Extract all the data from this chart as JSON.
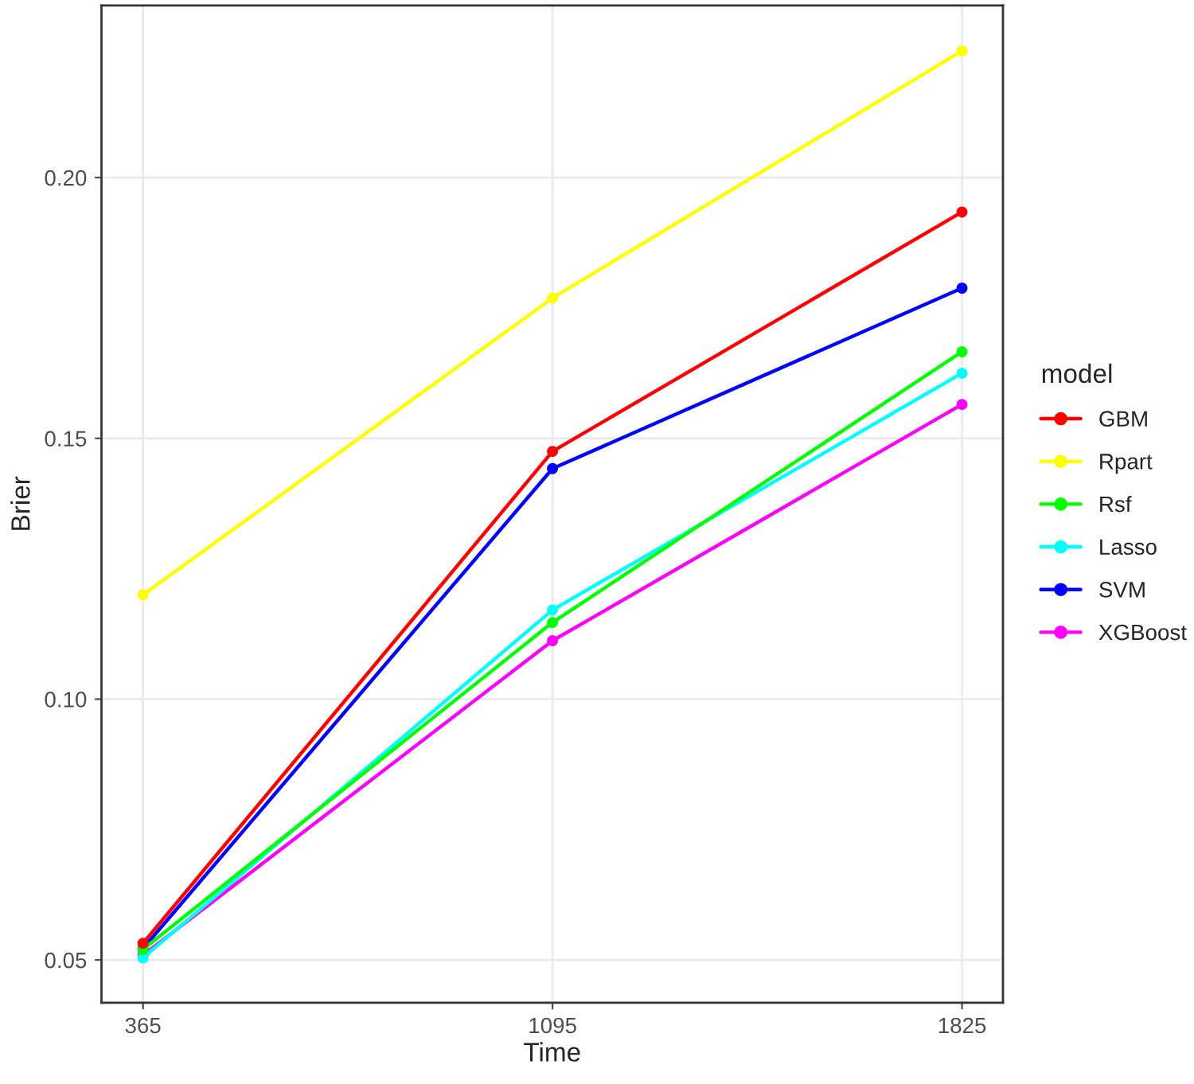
{
  "chart_data": {
    "type": "line",
    "xlabel": "Time",
    "ylabel": "Brier",
    "legend_title": "model",
    "x": [
      365,
      1095,
      1825
    ],
    "series": [
      {
        "name": "GBM",
        "color": "#ff0000",
        "values": [
          0.0532,
          0.1475,
          0.1934
        ]
      },
      {
        "name": "Rpart",
        "color": "#ffff00",
        "values": [
          0.12,
          0.1769,
          0.2243
        ]
      },
      {
        "name": "Rsf",
        "color": "#00ff00",
        "values": [
          0.052,
          0.1147,
          0.1666
        ]
      },
      {
        "name": "Lasso",
        "color": "#00ffff",
        "values": [
          0.0504,
          0.1171,
          0.1625
        ]
      },
      {
        "name": "SVM",
        "color": "#0000ff",
        "values": [
          0.0522,
          0.1442,
          0.1788
        ]
      },
      {
        "name": "XGBoost",
        "color": "#ff00ff",
        "values": [
          0.0509,
          0.1112,
          0.1565
        ]
      }
    ],
    "xlim": [
      291,
      1898
    ],
    "ylim": [
      0.0418,
      0.233
    ],
    "xticks": [
      365,
      1095,
      1825
    ],
    "yticks": [
      {
        "value": 0.05,
        "label": "0.05"
      },
      {
        "value": 0.1,
        "label": "0.10"
      },
      {
        "value": 0.15,
        "label": "0.15"
      },
      {
        "value": 0.2,
        "label": "0.20"
      }
    ],
    "grid": true,
    "legend": "right",
    "marker": "circle",
    "line_style": "solid"
  }
}
